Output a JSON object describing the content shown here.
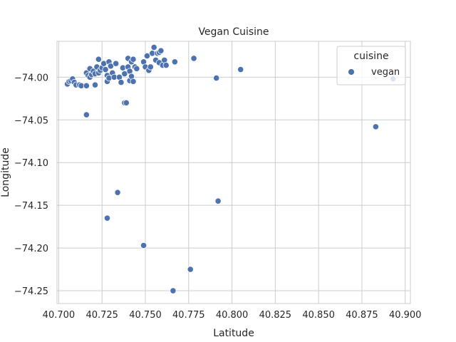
{
  "chart_data": {
    "type": "scatter",
    "title": "Vegan Cuisine",
    "xlabel": "Latitude",
    "ylabel": "Longitude",
    "xlim": [
      40.699,
      40.903
    ],
    "ylim": [
      -74.265,
      -73.958
    ],
    "xticks": [
      40.7,
      40.725,
      40.75,
      40.775,
      40.8,
      40.825,
      40.85,
      40.875,
      40.9
    ],
    "xtick_labels": [
      "40.700",
      "40.725",
      "40.750",
      "40.775",
      "40.800",
      "40.825",
      "40.850",
      "40.875",
      "40.900"
    ],
    "yticks": [
      -74.0,
      -74.05,
      -74.1,
      -74.15,
      -74.2,
      -74.25
    ],
    "ytick_labels": [
      "−74.00",
      "−74.05",
      "−74.10",
      "−74.15",
      "−74.20",
      "−74.25"
    ],
    "grid": true,
    "legend": {
      "title": "cuisine",
      "placement": "top-right",
      "entries": [
        {
          "label": "vegan",
          "color": "#4c72b0"
        }
      ]
    },
    "series": [
      {
        "name": "vegan",
        "color": "#4c72b0",
        "points": [
          [
            40.705,
            -74.008
          ],
          [
            40.706,
            -74.005
          ],
          [
            40.707,
            -74.004
          ],
          [
            40.708,
            -74.002
          ],
          [
            40.709,
            -74.006
          ],
          [
            40.71,
            -74.009
          ],
          [
            40.712,
            -74.009
          ],
          [
            40.713,
            -74.01
          ],
          [
            40.716,
            -74.01
          ],
          [
            40.716,
            -74.044
          ],
          [
            40.716,
            -73.995
          ],
          [
            40.717,
            -73.998
          ],
          [
            40.718,
            -74.0
          ],
          [
            40.718,
            -73.99
          ],
          [
            40.719,
            -73.997
          ],
          [
            40.72,
            -73.993
          ],
          [
            40.721,
            -73.996
          ],
          [
            40.721,
            -74.009
          ],
          [
            40.722,
            -73.988
          ],
          [
            40.723,
            -73.979
          ],
          [
            40.723,
            -73.995
          ],
          [
            40.724,
            -73.992
          ],
          [
            40.725,
            -73.989
          ],
          [
            40.726,
            -73.984
          ],
          [
            40.727,
            -73.991
          ],
          [
            40.728,
            -73.998
          ],
          [
            40.728,
            -74.005
          ],
          [
            40.729,
            -74.001
          ],
          [
            40.729,
            -73.982
          ],
          [
            40.73,
            -73.987
          ],
          [
            40.731,
            -73.995
          ],
          [
            40.732,
            -74.0
          ],
          [
            40.733,
            -73.984
          ],
          [
            40.735,
            -74.0
          ],
          [
            40.736,
            -74.006
          ],
          [
            40.737,
            -73.989
          ],
          [
            40.738,
            -73.996
          ],
          [
            40.738,
            -74.03
          ],
          [
            40.739,
            -74.03
          ],
          [
            40.74,
            -73.978
          ],
          [
            40.74,
            -73.988
          ],
          [
            40.741,
            -73.993
          ],
          [
            40.741,
            -74.004
          ],
          [
            40.742,
            -73.982
          ],
          [
            40.742,
            -73.999
          ],
          [
            40.743,
            -73.979
          ],
          [
            40.743,
            -74.005
          ],
          [
            40.744,
            -73.988
          ],
          [
            40.745,
            -73.99
          ],
          [
            40.749,
            -73.982
          ],
          [
            40.75,
            -73.988
          ],
          [
            40.751,
            -73.975
          ],
          [
            40.752,
            -73.992
          ],
          [
            40.753,
            -73.988
          ],
          [
            40.754,
            -73.972
          ],
          [
            40.755,
            -73.965
          ],
          [
            40.756,
            -73.98
          ],
          [
            40.757,
            -73.972
          ],
          [
            40.758,
            -73.971
          ],
          [
            40.758,
            -73.983
          ],
          [
            40.759,
            -73.969
          ],
          [
            40.76,
            -73.986
          ],
          [
            40.761,
            -73.98
          ],
          [
            40.762,
            -73.986
          ],
          [
            40.767,
            -73.982
          ],
          [
            40.778,
            -73.978
          ],
          [
            40.791,
            -74.001
          ],
          [
            40.805,
            -73.991
          ],
          [
            40.734,
            -74.135
          ],
          [
            40.728,
            -74.165
          ],
          [
            40.749,
            -74.197
          ],
          [
            40.776,
            -74.225
          ],
          [
            40.766,
            -74.25
          ],
          [
            40.792,
            -74.145
          ],
          [
            40.883,
            -74.058
          ],
          [
            40.893,
            -74.002
          ]
        ]
      }
    ]
  }
}
